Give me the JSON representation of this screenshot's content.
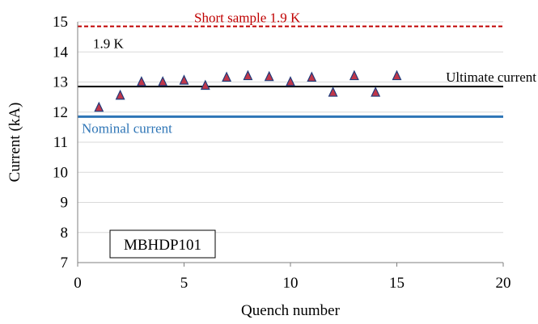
{
  "chart_data": {
    "type": "scatter",
    "xlabel": "Quench number",
    "ylabel": "Current (kA)",
    "xlim": [
      0,
      20
    ],
    "ylim": [
      7,
      15
    ],
    "x_ticks": [
      "0",
      "5",
      "10",
      "15",
      "20"
    ],
    "y_ticks": [
      "7",
      "8",
      "9",
      "10",
      "11",
      "12",
      "13",
      "14",
      "15"
    ],
    "grid": "horizontal",
    "series": [
      {
        "marker": "triangle",
        "color": "#c0374a",
        "edge_color": "#1f3a7a",
        "x": [
          1,
          2,
          3,
          4,
          5,
          6,
          7,
          8,
          9,
          10,
          11,
          12,
          13,
          14,
          15
        ],
        "y": [
          12.15,
          12.55,
          13.0,
          13.0,
          13.05,
          12.88,
          13.15,
          13.2,
          13.17,
          13.0,
          13.15,
          12.65,
          13.2,
          12.65,
          13.2
        ]
      }
    ],
    "reference_lines": [
      {
        "y": 14.85,
        "style": "dashed",
        "color": "#c00000"
      },
      {
        "y": 12.85,
        "style": "solid",
        "color": "#000000"
      },
      {
        "y": 11.85,
        "style": "solid",
        "color": "#2e75b6"
      }
    ],
    "annotations": {
      "short_sample": {
        "text": "Short sample 1.9 K",
        "color": "#c00000"
      },
      "temp": {
        "text": "1.9 K",
        "color": "#000000"
      },
      "ultimate": {
        "text": "Ultimate  current",
        "color": "#000000"
      },
      "nominal": {
        "text": "Nominal current",
        "color": "#2e75b6"
      }
    },
    "box_label": "MBHDP101"
  }
}
